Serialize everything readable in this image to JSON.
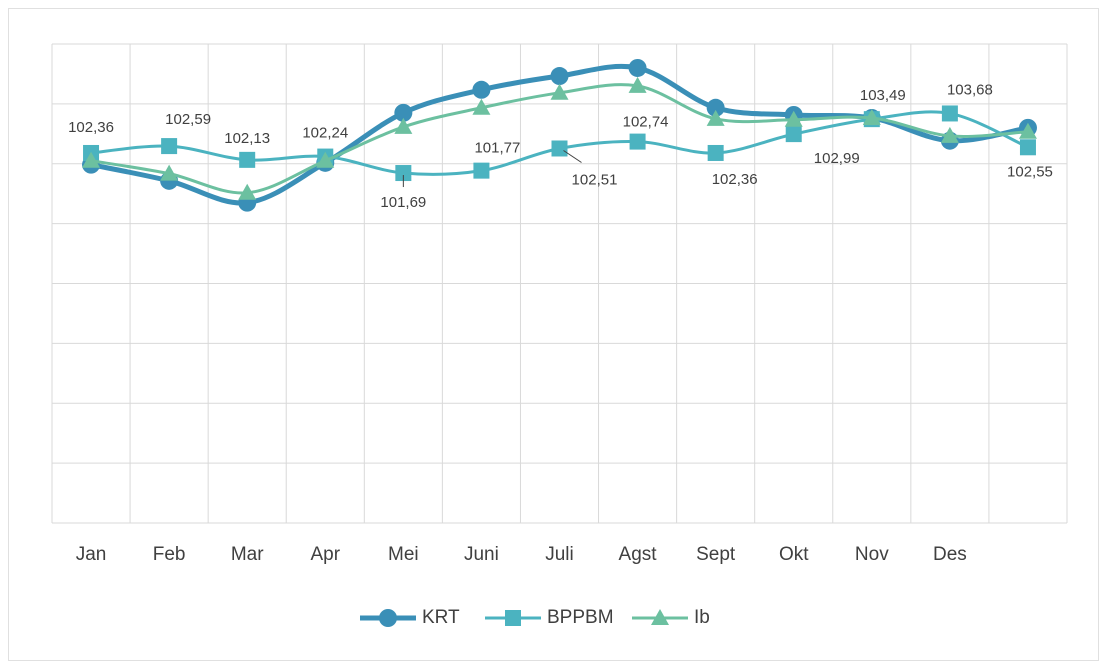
{
  "chart_data": {
    "type": "line",
    "categories": [
      "Jan",
      "Feb",
      "Mar",
      "Apr",
      "Mei",
      "Juni",
      "Juli",
      "Agst",
      "Sept",
      "Okt",
      "Nov",
      "Des",
      null
    ],
    "series": [
      {
        "name": "KRT",
        "color": "#3a8fb7",
        "marker": "circle",
        "values": [
          101.97,
          101.43,
          100.7,
          102.03,
          103.7,
          104.47,
          104.93,
          105.2,
          103.87,
          103.63,
          103.53,
          102.77,
          103.2
        ]
      },
      {
        "name": "BPPBM",
        "color": "#4bb3c0",
        "marker": "square",
        "values": [
          102.36,
          102.59,
          102.13,
          102.24,
          101.69,
          101.77,
          102.51,
          102.74,
          102.36,
          102.99,
          103.49,
          103.68,
          102.55
        ],
        "value_labels": [
          "102,36",
          "102,59",
          "102,13",
          "102,24",
          "101,69",
          "101,77",
          "102,51",
          "102,74",
          "102,36",
          "102,99",
          "103,49",
          "103,68",
          "102,55"
        ]
      },
      {
        "name": "Ib",
        "color": "#6cc0a0",
        "marker": "triangle",
        "values": [
          102.1,
          101.67,
          101.03,
          102.1,
          103.23,
          103.87,
          104.37,
          104.6,
          103.5,
          103.47,
          103.53,
          102.93,
          103.07
        ]
      }
    ],
    "ylim": [
      90,
      106
    ],
    "yticks": [
      90,
      92,
      94,
      96,
      98,
      100,
      102,
      104,
      106
    ],
    "grid": true,
    "legend": "bottom"
  }
}
